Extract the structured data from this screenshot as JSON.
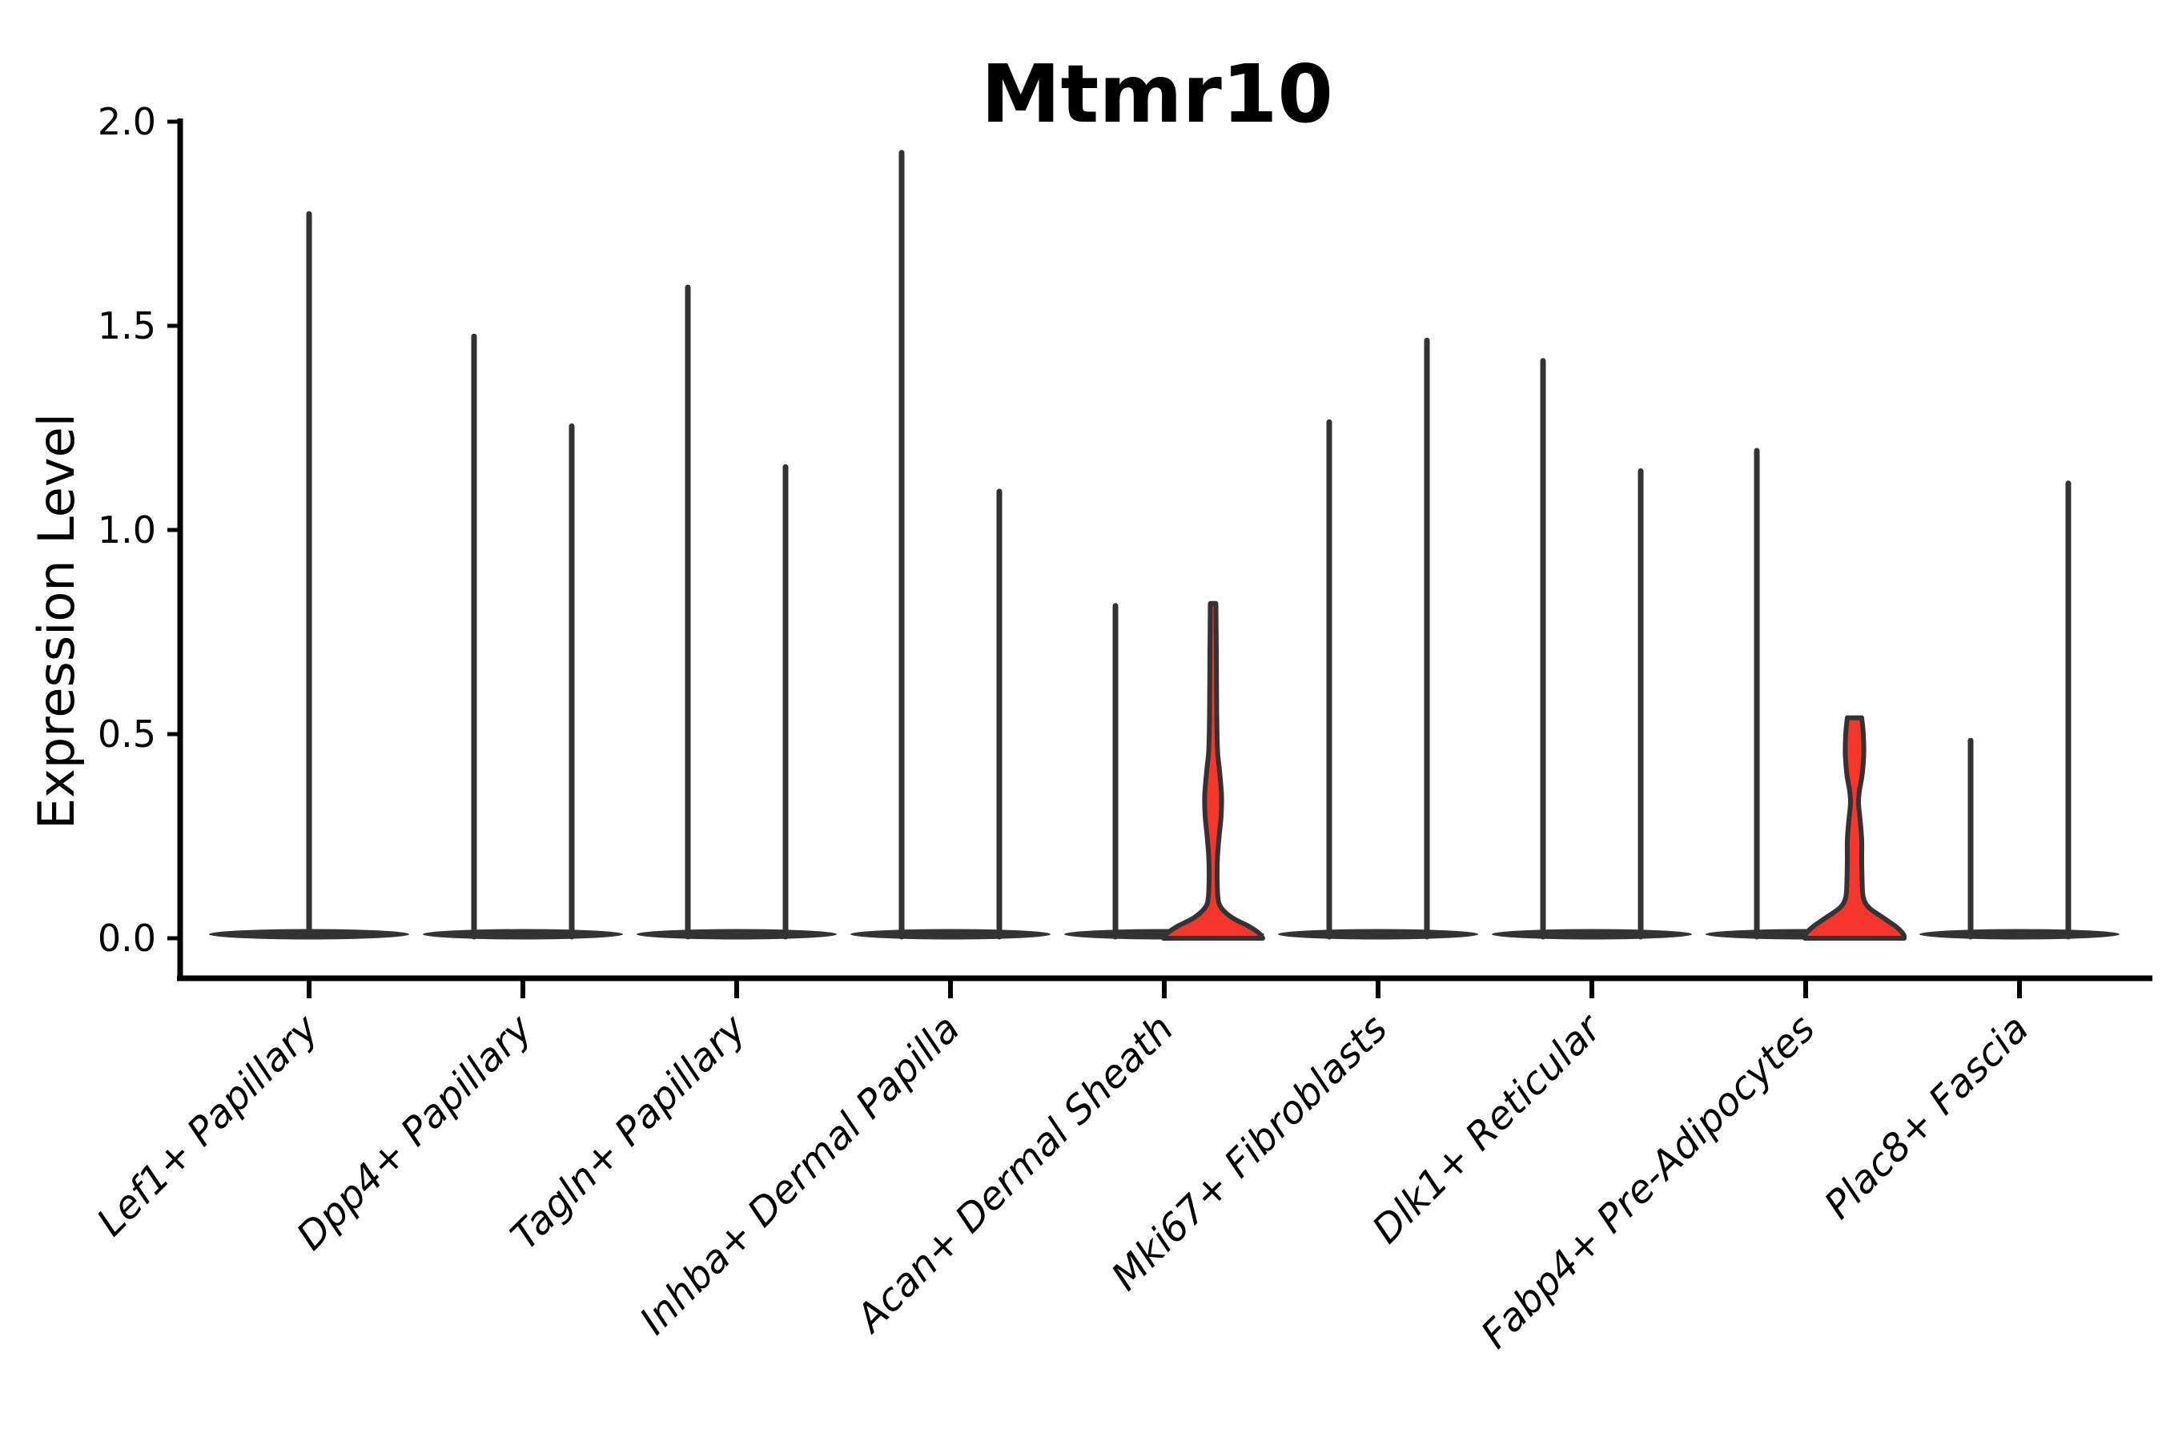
{
  "figure": {
    "title": "Mtmr10",
    "y_axis": {
      "label": "Expression Level",
      "tick_labels": [
        "0.0",
        "0.5",
        "1.0",
        "1.5",
        "2.0"
      ],
      "range": [
        0.0,
        2.0
      ]
    },
    "x_axis": {
      "tick_labels": [
        "Lef1+ Papillary",
        "Dpp4+ Papillary",
        "Tagln+ Papillary",
        "Inhba+ Dermal Papilla",
        "Acan+ Dermal Sheath",
        "Mki67+ Fibroblasts",
        "Dlk1+ Reticular",
        "Fabp4+ Pre-Adipocytes",
        "Plac8+ Fascia"
      ]
    }
  },
  "chart_data": {
    "type": "violin",
    "title": "Mtmr10",
    "xlabel": "",
    "ylabel": "Expression Level",
    "ylim": [
      0.0,
      2.0
    ],
    "yticks": [
      0.0,
      0.5,
      1.0,
      1.5,
      2.0
    ],
    "grid": false,
    "legend": "none",
    "description": "Violin plot of Mtmr10 expression per fibroblast cell type; most violins collapse to a flat base at 0 with a thin density spike; two red-filled violins (right violin of Acan+ Dermal Sheath and of Fabp4+ Pre-Adipocytes) show visible density mass above 0.",
    "colors": {
      "violin_outline": "#333333",
      "violin_dark": "#333333",
      "red_fill": "#f8352b",
      "axis": "#000000",
      "text": "#000000",
      "background": "#ffffff"
    },
    "base_mass_at_zero": true,
    "categories": [
      {
        "label": "Lef1+ Papillary",
        "violins": [
          {
            "position": "center",
            "max_expression": 1.78,
            "style": "spike"
          }
        ]
      },
      {
        "label": "Dpp4+ Papillary",
        "violins": [
          {
            "position": "left",
            "max_expression": 1.48,
            "style": "spike"
          },
          {
            "position": "right",
            "max_expression": 1.26,
            "style": "spike"
          }
        ]
      },
      {
        "label": "Tagln+ Papillary",
        "violins": [
          {
            "position": "left",
            "max_expression": 1.6,
            "style": "spike"
          },
          {
            "position": "right",
            "max_expression": 1.16,
            "style": "spike"
          }
        ]
      },
      {
        "label": "Inhba+ Dermal Papilla",
        "violins": [
          {
            "position": "left",
            "max_expression": 1.93,
            "style": "spike"
          },
          {
            "position": "right",
            "max_expression": 1.1,
            "style": "spike"
          }
        ]
      },
      {
        "label": "Acan+ Dermal Sheath",
        "violins": [
          {
            "position": "left",
            "max_expression": 0.82,
            "style": "spike"
          },
          {
            "position": "right",
            "max_expression": 0.82,
            "style": "filled",
            "fill": "#f8352b",
            "profile": [
              [
                0.82,
                3.5
              ],
              [
                0.7,
                4.0
              ],
              [
                0.55,
                4.5
              ],
              [
                0.46,
                5.5
              ],
              [
                0.41,
                8.0
              ],
              [
                0.35,
                10.5
              ],
              [
                0.3,
                10.0
              ],
              [
                0.25,
                7.5
              ],
              [
                0.2,
                5.5
              ],
              [
                0.15,
                5.0
              ],
              [
                0.1,
                6.0
              ],
              [
                0.075,
                10.0
              ],
              [
                0.05,
                24.0
              ],
              [
                0.03,
                44.0
              ],
              [
                0.013,
                57.0
              ],
              [
                0.0,
                62.0
              ]
            ]
          }
        ]
      },
      {
        "label": "Mki67+ Fibroblasts",
        "violins": [
          {
            "position": "left",
            "max_expression": 1.27,
            "style": "spike"
          },
          {
            "position": "right",
            "max_expression": 1.47,
            "style": "spike"
          }
        ]
      },
      {
        "label": "Dlk1+ Reticular",
        "violins": [
          {
            "position": "left",
            "max_expression": 1.42,
            "style": "spike"
          },
          {
            "position": "right",
            "max_expression": 1.15,
            "style": "spike"
          }
        ]
      },
      {
        "label": "Fabp4+ Pre-Adipocytes",
        "violins": [
          {
            "position": "left",
            "max_expression": 1.2,
            "style": "spike"
          },
          {
            "position": "right",
            "max_expression": 0.54,
            "style": "filled",
            "fill": "#f8352b",
            "flat_top": true,
            "profile": [
              [
                0.54,
                9.0
              ],
              [
                0.5,
                11.0
              ],
              [
                0.45,
                11.5
              ],
              [
                0.4,
                9.5
              ],
              [
                0.36,
                6.0
              ],
              [
                0.33,
                5.0
              ],
              [
                0.29,
                7.0
              ],
              [
                0.24,
                9.0
              ],
              [
                0.19,
                9.0
              ],
              [
                0.14,
                9.5
              ],
              [
                0.1,
                11.0
              ],
              [
                0.075,
                18.0
              ],
              [
                0.05,
                36.0
              ],
              [
                0.028,
                52.0
              ],
              [
                0.01,
                61.0
              ],
              [
                0.0,
                62.0
              ]
            ]
          }
        ]
      },
      {
        "label": "Plac8+ Fascia",
        "violins": [
          {
            "position": "left",
            "max_expression": 0.49,
            "style": "spike"
          },
          {
            "position": "right",
            "max_expression": 1.12,
            "style": "spike"
          }
        ]
      }
    ]
  }
}
